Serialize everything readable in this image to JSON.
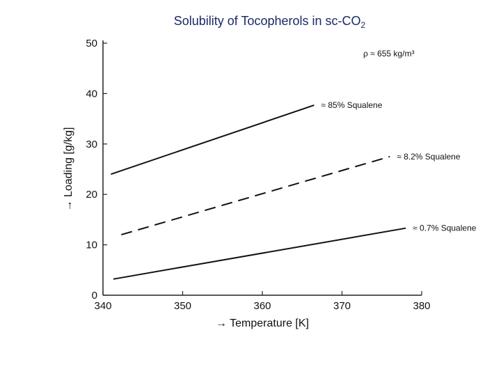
{
  "chart_data": {
    "type": "line",
    "title": "Solubility of Tocopherols in sc-CO",
    "title_subscript": "2",
    "xlabel": "→ Temperature [K]",
    "ylabel": "→ Loading [g/kg]",
    "xlim": [
      340,
      380
    ],
    "ylim": [
      0,
      50
    ],
    "x_ticks": [
      340,
      350,
      360,
      370,
      380
    ],
    "y_ticks": [
      0,
      10,
      20,
      30,
      40,
      50
    ],
    "grid": false,
    "annotation": "ρ ≈ 655 kg/m³",
    "series": [
      {
        "name": "≈ 85% Squalene",
        "style": "solid",
        "color": "#111111",
        "x": [
          341,
          366.5
        ],
        "y": [
          24.0,
          37.7
        ]
      },
      {
        "name": "≈ 8.2% Squalene",
        "style": "dashed",
        "color": "#111111",
        "x": [
          342.3,
          376
        ],
        "y": [
          12.0,
          27.5
        ]
      },
      {
        "name": "≈ 0.7% Squalene",
        "style": "solid",
        "color": "#111111",
        "x": [
          341.3,
          378
        ],
        "y": [
          3.2,
          13.3
        ]
      }
    ]
  }
}
